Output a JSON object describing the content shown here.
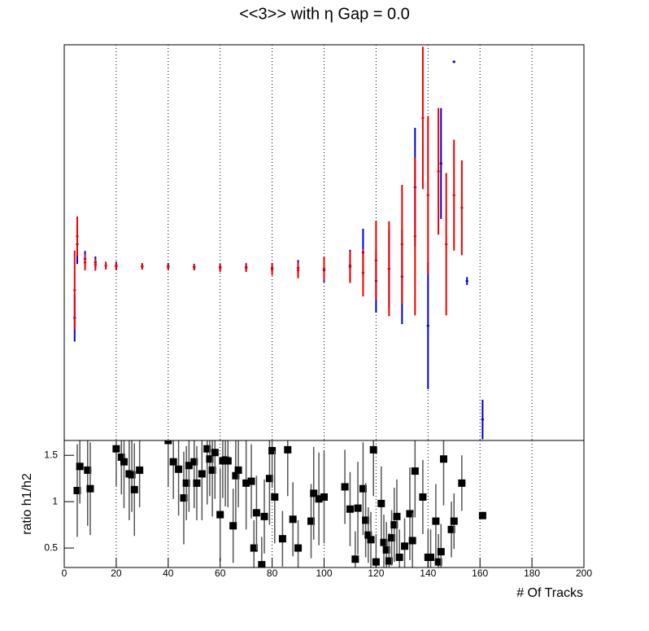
{
  "chart_data": [
    {
      "type": "errorbar",
      "title": "<<3>> with η Gap = 0.0",
      "xlim": [
        0,
        200
      ],
      "ylim": [
        0,
        100
      ],
      "series": [
        {
          "name": "h1",
          "color": "#0000cc",
          "x": [
            4,
            5,
            8,
            12,
            20,
            30,
            40,
            50,
            60,
            70,
            80,
            90,
            100,
            110,
            115,
            120,
            125,
            130,
            135,
            140,
            145,
            150,
            155,
            161
          ],
          "values": [
            31,
            49.6,
            45.9,
            45,
            44.2,
            44,
            44,
            43.8,
            43.8,
            43.8,
            43.6,
            43.6,
            43,
            44.2,
            47.5,
            40.3,
            43.4,
            41.4,
            64,
            29,
            70,
            95.7,
            40.3,
            5.3
          ],
          "errors": [
            6,
            5,
            2,
            1.5,
            1,
            0.8,
            0.8,
            0.8,
            0.8,
            1,
            1.2,
            2,
            3,
            4,
            6,
            8,
            10,
            12,
            15,
            16,
            14,
            0.3,
            1,
            5
          ]
        },
        {
          "name": "h2",
          "color": "#ee0000",
          "x": [
            4,
            5,
            8,
            12,
            16,
            20,
            30,
            40,
            50,
            60,
            70,
            80,
            90,
            100,
            110,
            115,
            120,
            125,
            130,
            135,
            138,
            140,
            144,
            147,
            150,
            153
          ],
          "values": [
            38,
            51.6,
            45,
            44.4,
            44.2,
            44,
            44,
            43.8,
            43.8,
            43.6,
            43.6,
            43.2,
            43,
            43.4,
            43.8,
            42.4,
            45.5,
            43.4,
            49.6,
            51.6,
            81.5,
            62,
            68,
            49.6,
            62,
            58.8
          ],
          "errors": [
            10,
            5,
            2,
            1.5,
            1,
            1,
            0.8,
            0.8,
            0.8,
            1,
            1,
            1.5,
            2,
            3,
            4,
            6,
            10,
            12,
            15,
            20,
            18,
            20,
            16,
            18,
            14,
            12
          ]
        }
      ]
    },
    {
      "type": "errorbar",
      "x_label": "# Of Tracks",
      "y_label": "ratio h1/h2",
      "xlim": [
        0,
        200
      ],
      "ylim": [
        0.29,
        1.66
      ],
      "xticks": [
        0,
        20,
        40,
        60,
        80,
        100,
        120,
        140,
        160,
        180,
        200
      ],
      "yticks": [
        0.5,
        1,
        1.5
      ],
      "grid": true,
      "series": [
        {
          "name": "ratio",
          "color": "#000000",
          "x": [
            5,
            6,
            9,
            10,
            20,
            22,
            23,
            25,
            26,
            27,
            29,
            40,
            42,
            44,
            46,
            47,
            48,
            50,
            51,
            53,
            55,
            56,
            57,
            58,
            60,
            61,
            62,
            63,
            65,
            66,
            67,
            70,
            72,
            73,
            74,
            76,
            77,
            79,
            80,
            81,
            84,
            86,
            88,
            90,
            95,
            96,
            98,
            100,
            108,
            110,
            112,
            113,
            115,
            116,
            117,
            118,
            119,
            120,
            122,
            123,
            124,
            125,
            126,
            127,
            128,
            129,
            131,
            133,
            134,
            135,
            138,
            140,
            141,
            143,
            144,
            145,
            146,
            149,
            150,
            153,
            161
          ],
          "values": [
            1.12,
            1.38,
            1.34,
            1.14,
            1.57,
            1.48,
            1.43,
            1.3,
            1.29,
            1.13,
            1.34,
            1.66,
            1.43,
            1.35,
            1.04,
            1.2,
            1.39,
            1.43,
            1.2,
            1.3,
            1.57,
            1.46,
            1.34,
            1.53,
            0.86,
            1.44,
            1.45,
            1.44,
            0.74,
            1.28,
            1.34,
            1.2,
            1.22,
            0.5,
            0.88,
            0.32,
            0.84,
            1.25,
            1.55,
            1.05,
            0.6,
            1.56,
            0.81,
            0.5,
            0.79,
            1.09,
            1.03,
            1.05,
            1.16,
            0.92,
            0.38,
            0.93,
            1.14,
            0.8,
            0.64,
            0.59,
            1.56,
            0.35,
            0.98,
            0.56,
            0.48,
            0.36,
            0.61,
            0.75,
            0.84,
            0.4,
            0.52,
            0.87,
            0.58,
            1.33,
            1.05,
            0.4,
            0.4,
            0.79,
            0.35,
            0.46,
            1.46,
            0.7,
            0.79,
            1.2,
            0.85
          ],
          "errors": [
            0.5,
            0.4,
            0.6,
            0.5,
            0.4,
            0.4,
            0.5,
            0.5,
            0.4,
            0.5,
            0.4,
            0.5,
            0.4,
            0.5,
            0.5,
            0.4,
            0.5,
            0.5,
            0.4,
            0.5,
            0.6,
            0.4,
            0.5,
            0.5,
            0.5,
            0.4,
            0.5,
            0.5,
            0.4,
            0.5,
            0.4,
            0.5,
            0.4,
            0.3,
            0.4,
            0.3,
            0.4,
            0.5,
            0.4,
            0.5,
            0.3,
            0.5,
            0.4,
            0.3,
            0.4,
            0.5,
            0.5,
            0.5,
            0.4,
            0.4,
            0.3,
            0.5,
            0.5,
            0.4,
            0.3,
            0.3,
            0.5,
            0.3,
            0.4,
            0.3,
            0.3,
            0.3,
            0.3,
            0.4,
            0.4,
            0.3,
            0.3,
            0.5,
            0.3,
            0.5,
            0.4,
            0.3,
            0.3,
            0.4,
            0.3,
            0.3,
            0.5,
            0.3,
            0.3,
            0.3,
            0.02
          ]
        }
      ]
    }
  ]
}
